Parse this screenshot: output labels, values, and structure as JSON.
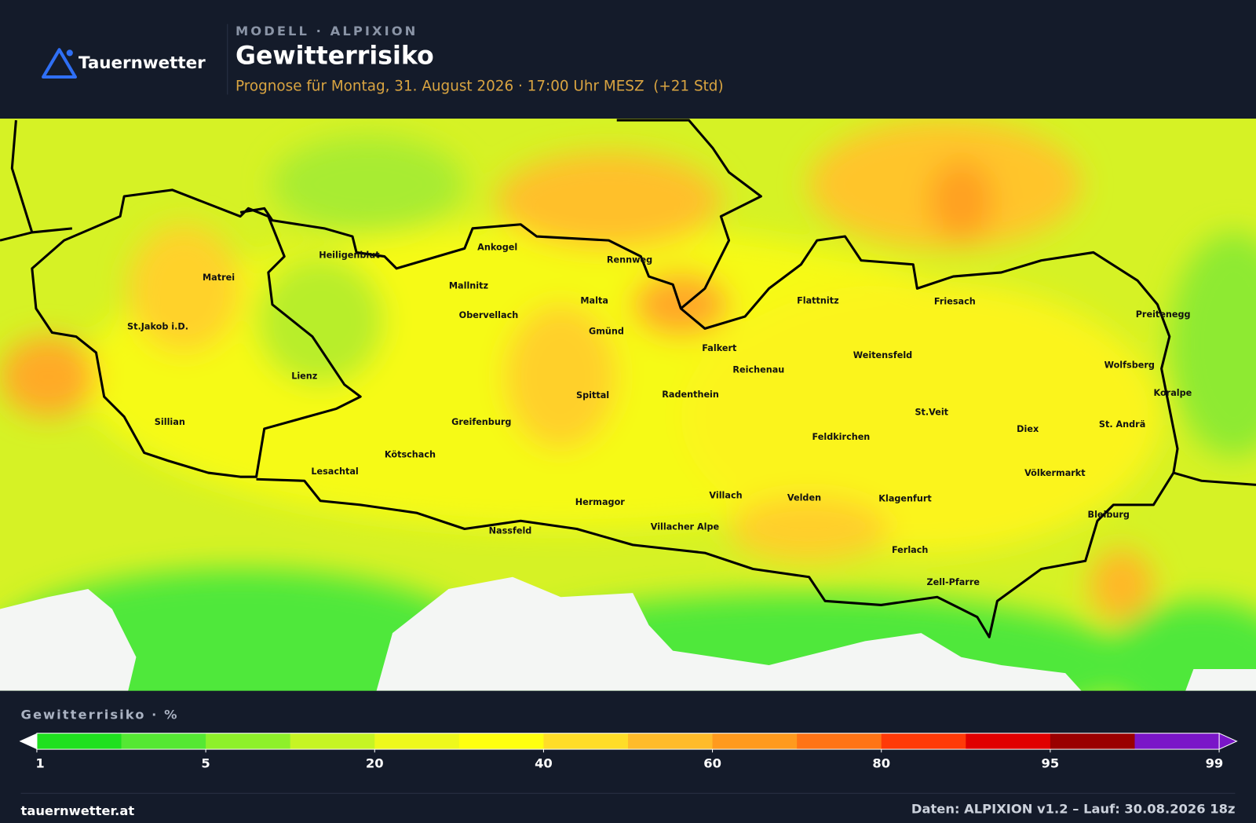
{
  "header": {
    "brand": "Tauernwetter",
    "model": "MODELL · ALPIXION",
    "title": "Gewitterrisiko",
    "subtitle": "Prognose für Montag, 31. August 2026 · 17:00 Uhr MESZ  (+21 Std)"
  },
  "places": [
    "Matrei",
    "St.Jakob i.D.",
    "Lienz",
    "Sillian",
    "Heiligenblut",
    "Mallnitz",
    "Ankogel",
    "Obervellach",
    "Malta",
    "Rennweg",
    "Gmünd",
    "Spittal",
    "Greifenburg",
    "Kötschach",
    "Lesachtal",
    "Hermagor",
    "Nassfeld",
    "Villach",
    "Villacher Alpe",
    "Radenthein",
    "Falkert",
    "Reichenau",
    "Flattnitz",
    "Friesach",
    "Weitensfeld",
    "Feldkirchen",
    "St.Veit",
    "Velden",
    "Klagenfurt",
    "Ferlach",
    "Zell-Pfarre",
    "Diex",
    "Völkermarkt",
    "Bleiburg",
    "St. Andrä",
    "Koralpe",
    "Wolfsberg",
    "Preitenegg"
  ],
  "legend": {
    "title": "Gewitterrisiko · %",
    "ticks": [
      1,
      5,
      20,
      40,
      60,
      80,
      95,
      99
    ],
    "colors": [
      "#1fe01f",
      "#55e833",
      "#8ef02a",
      "#c6f424",
      "#eef81c",
      "#ffff10",
      "#ffdd28",
      "#ffbb2a",
      "#ff9a1e",
      "#ff7416",
      "#ff3a08",
      "#e00000",
      "#9a0000",
      "#7a16c8"
    ]
  },
  "footer": {
    "site": "tauernwetter.at",
    "source": "Daten: ALPIXION v1.2 – Lauf: 30.08.2026 18z"
  }
}
